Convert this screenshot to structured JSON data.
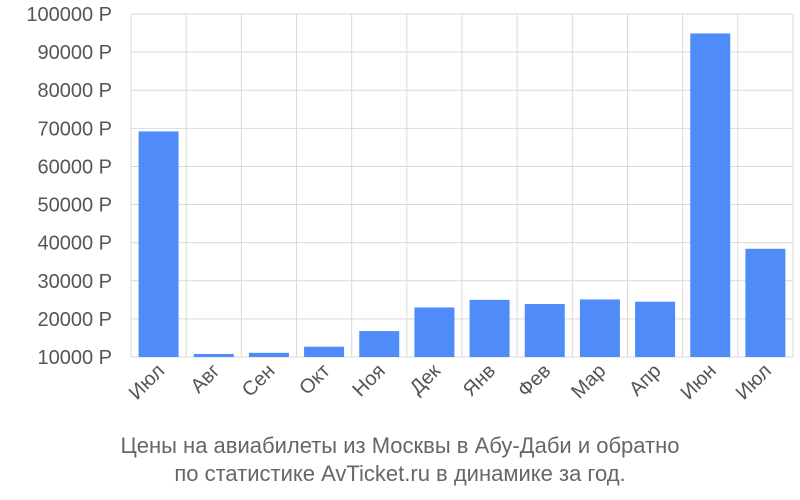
{
  "chart_data": {
    "type": "bar",
    "categories": [
      "Июл",
      "Авг",
      "Сен",
      "Окт",
      "Ноя",
      "Дек",
      "Янв",
      "Фев",
      "Мар",
      "Апр",
      "Июн",
      "Июл"
    ],
    "values": [
      69200,
      10800,
      11100,
      12700,
      16800,
      23000,
      25000,
      23900,
      25100,
      24500,
      94900,
      38400
    ],
    "ylim": [
      10000,
      100000
    ],
    "y_ticks": [
      10000,
      20000,
      30000,
      40000,
      50000,
      60000,
      70000,
      80000,
      90000,
      100000
    ],
    "y_tick_suffix": " Р",
    "grid": true,
    "bar_color": "#4f8cf9",
    "caption": [
      "Цены на авиабилеты из Москвы в Абу-Даби и обратно",
      "по статистике AvTicket.ru в динамике за год."
    ]
  }
}
